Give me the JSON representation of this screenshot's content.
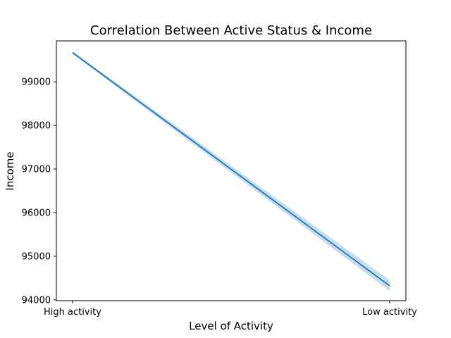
{
  "chart_data": {
    "type": "line",
    "title": "Correlation Between Active Status & Income",
    "xlabel": "Level of Activity",
    "ylabel": "Income",
    "categories": [
      "High activity",
      "Low activity"
    ],
    "series": [
      {
        "values": [
          99670,
          94320
        ],
        "ci_lower": [
          99640,
          94200
        ],
        "ci_upper": [
          99700,
          94450
        ],
        "color": "#1f77b4",
        "band_color": "#1f77b4"
      }
    ],
    "y_ticks": [
      94000,
      95000,
      96000,
      97000,
      98000,
      99000
    ],
    "ylim": [
      93980,
      99940
    ],
    "grid": false,
    "legend": "none"
  }
}
